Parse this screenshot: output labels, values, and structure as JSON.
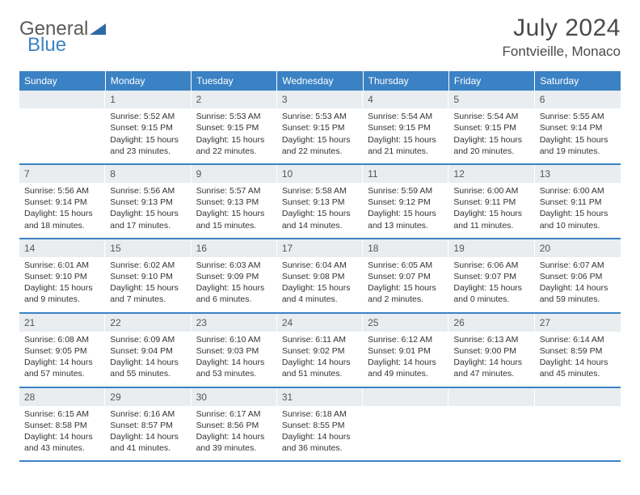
{
  "logo": {
    "text1": "General",
    "text2": "Blue",
    "tri_color": "#2f6aa8"
  },
  "title": "July 2024",
  "location": "Fontvieille, Monaco",
  "colors": {
    "header_bg": "#3b82c4",
    "header_text": "#ffffff",
    "daynum_bg": "#e9edf0",
    "rule": "#3b82c4",
    "body_text": "#333333",
    "page_bg": "#ffffff"
  },
  "weekdays": [
    "Sunday",
    "Monday",
    "Tuesday",
    "Wednesday",
    "Thursday",
    "Friday",
    "Saturday"
  ],
  "weeks": [
    [
      null,
      {
        "n": "1",
        "sr": "5:52 AM",
        "ss": "9:15 PM",
        "dl": "15 hours and 23 minutes."
      },
      {
        "n": "2",
        "sr": "5:53 AM",
        "ss": "9:15 PM",
        "dl": "15 hours and 22 minutes."
      },
      {
        "n": "3",
        "sr": "5:53 AM",
        "ss": "9:15 PM",
        "dl": "15 hours and 22 minutes."
      },
      {
        "n": "4",
        "sr": "5:54 AM",
        "ss": "9:15 PM",
        "dl": "15 hours and 21 minutes."
      },
      {
        "n": "5",
        "sr": "5:54 AM",
        "ss": "9:15 PM",
        "dl": "15 hours and 20 minutes."
      },
      {
        "n": "6",
        "sr": "5:55 AM",
        "ss": "9:14 PM",
        "dl": "15 hours and 19 minutes."
      }
    ],
    [
      {
        "n": "7",
        "sr": "5:56 AM",
        "ss": "9:14 PM",
        "dl": "15 hours and 18 minutes."
      },
      {
        "n": "8",
        "sr": "5:56 AM",
        "ss": "9:13 PM",
        "dl": "15 hours and 17 minutes."
      },
      {
        "n": "9",
        "sr": "5:57 AM",
        "ss": "9:13 PM",
        "dl": "15 hours and 15 minutes."
      },
      {
        "n": "10",
        "sr": "5:58 AM",
        "ss": "9:13 PM",
        "dl": "15 hours and 14 minutes."
      },
      {
        "n": "11",
        "sr": "5:59 AM",
        "ss": "9:12 PM",
        "dl": "15 hours and 13 minutes."
      },
      {
        "n": "12",
        "sr": "6:00 AM",
        "ss": "9:11 PM",
        "dl": "15 hours and 11 minutes."
      },
      {
        "n": "13",
        "sr": "6:00 AM",
        "ss": "9:11 PM",
        "dl": "15 hours and 10 minutes."
      }
    ],
    [
      {
        "n": "14",
        "sr": "6:01 AM",
        "ss": "9:10 PM",
        "dl": "15 hours and 9 minutes."
      },
      {
        "n": "15",
        "sr": "6:02 AM",
        "ss": "9:10 PM",
        "dl": "15 hours and 7 minutes."
      },
      {
        "n": "16",
        "sr": "6:03 AM",
        "ss": "9:09 PM",
        "dl": "15 hours and 6 minutes."
      },
      {
        "n": "17",
        "sr": "6:04 AM",
        "ss": "9:08 PM",
        "dl": "15 hours and 4 minutes."
      },
      {
        "n": "18",
        "sr": "6:05 AM",
        "ss": "9:07 PM",
        "dl": "15 hours and 2 minutes."
      },
      {
        "n": "19",
        "sr": "6:06 AM",
        "ss": "9:07 PM",
        "dl": "15 hours and 0 minutes."
      },
      {
        "n": "20",
        "sr": "6:07 AM",
        "ss": "9:06 PM",
        "dl": "14 hours and 59 minutes."
      }
    ],
    [
      {
        "n": "21",
        "sr": "6:08 AM",
        "ss": "9:05 PM",
        "dl": "14 hours and 57 minutes."
      },
      {
        "n": "22",
        "sr": "6:09 AM",
        "ss": "9:04 PM",
        "dl": "14 hours and 55 minutes."
      },
      {
        "n": "23",
        "sr": "6:10 AM",
        "ss": "9:03 PM",
        "dl": "14 hours and 53 minutes."
      },
      {
        "n": "24",
        "sr": "6:11 AM",
        "ss": "9:02 PM",
        "dl": "14 hours and 51 minutes."
      },
      {
        "n": "25",
        "sr": "6:12 AM",
        "ss": "9:01 PM",
        "dl": "14 hours and 49 minutes."
      },
      {
        "n": "26",
        "sr": "6:13 AM",
        "ss": "9:00 PM",
        "dl": "14 hours and 47 minutes."
      },
      {
        "n": "27",
        "sr": "6:14 AM",
        "ss": "8:59 PM",
        "dl": "14 hours and 45 minutes."
      }
    ],
    [
      {
        "n": "28",
        "sr": "6:15 AM",
        "ss": "8:58 PM",
        "dl": "14 hours and 43 minutes."
      },
      {
        "n": "29",
        "sr": "6:16 AM",
        "ss": "8:57 PM",
        "dl": "14 hours and 41 minutes."
      },
      {
        "n": "30",
        "sr": "6:17 AM",
        "ss": "8:56 PM",
        "dl": "14 hours and 39 minutes."
      },
      {
        "n": "31",
        "sr": "6:18 AM",
        "ss": "8:55 PM",
        "dl": "14 hours and 36 minutes."
      },
      null,
      null,
      null
    ]
  ],
  "labels": {
    "sunrise": "Sunrise:",
    "sunset": "Sunset:",
    "daylight": "Daylight:"
  }
}
